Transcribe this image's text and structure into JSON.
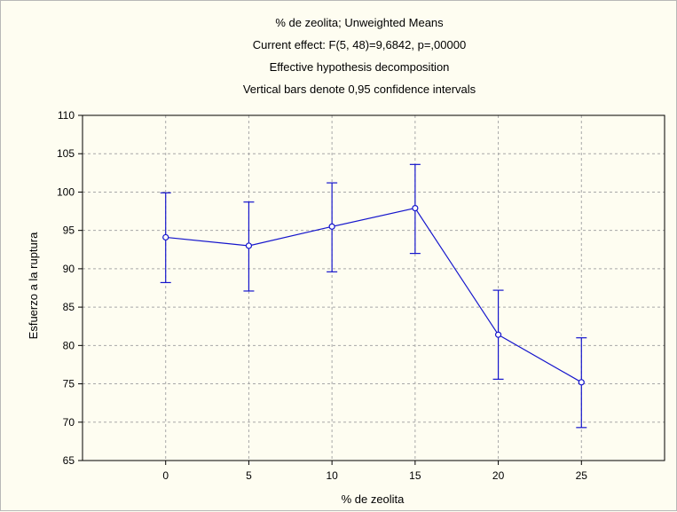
{
  "chart_data": {
    "type": "line",
    "title_lines": [
      "% de zeolita; Unweighted Means",
      "Current effect: F(5, 48)=9,6842, p=,00000",
      "Effective hypothesis decomposition",
      "Vertical bars denote 0,95 confidence intervals"
    ],
    "xlabel": "% de zeolita",
    "ylabel": "Esfuerzo a la ruptura",
    "x": [
      0,
      5,
      10,
      15,
      20,
      25
    ],
    "x_tick_labels": [
      "0",
      "5",
      "10",
      "15",
      "20",
      "25"
    ],
    "series": [
      {
        "values": [
          94.1,
          93.0,
          95.5,
          97.9,
          81.4,
          75.2
        ],
        "ci_lower": [
          88.2,
          87.1,
          89.6,
          92.0,
          75.6,
          69.3
        ],
        "ci_upper": [
          99.9,
          98.7,
          101.2,
          103.6,
          87.2,
          81.0
        ]
      }
    ],
    "ylim": [
      65,
      110
    ],
    "y_ticks": [
      65,
      70,
      75,
      80,
      85,
      90,
      95,
      100,
      105,
      110
    ],
    "xlim": [
      -5,
      30
    ],
    "grid": true,
    "colors": {
      "series": "#1515cc",
      "grid": "#a8a8a8",
      "axis": "#000000",
      "background": "#fefdf1"
    }
  }
}
